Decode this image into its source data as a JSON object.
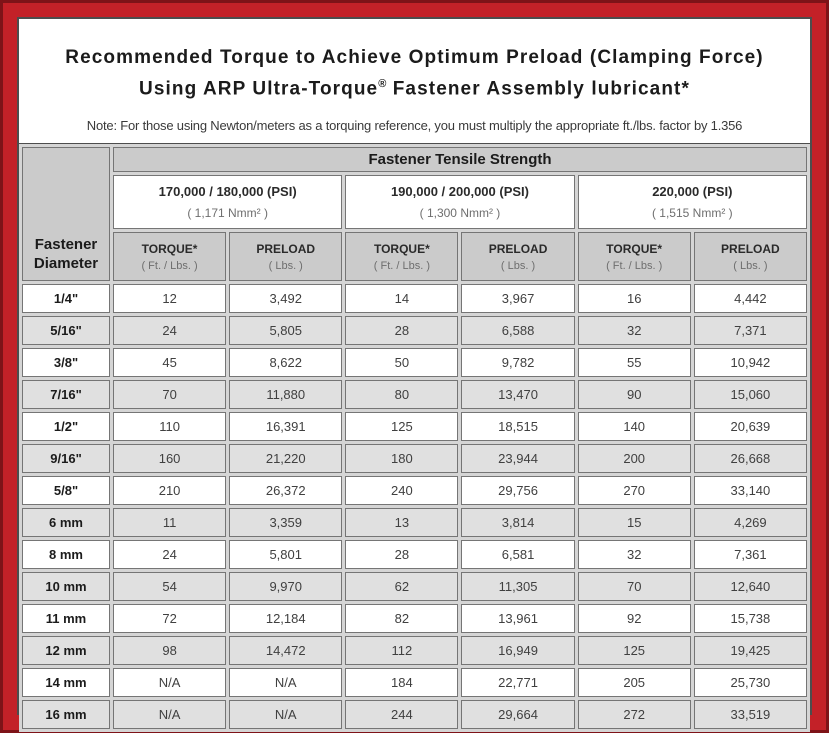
{
  "title": {
    "line1": "Recommended Torque to Achieve Optimum Preload (Clamping Force)",
    "line2_pre": "Using ARP Ultra-Torque",
    "line2_sup": "®",
    "line2_post": " Fastener Assembly lubricant*",
    "note": "Note: For those using Newton/meters as a torquing reference, you must multiply the appropriate ft./lbs. factor by 1.356"
  },
  "table": {
    "corner_header": "Fastener Diameter",
    "tensile_header": "Fastener Tensile Strength",
    "strength_groups": [
      {
        "psi": "170,000 / 180,000 (PSI)",
        "nmm": "( 1,171 Nmm² )"
      },
      {
        "psi": "190,000 / 200,000 (PSI)",
        "nmm": "( 1,300 Nmm² )"
      },
      {
        "psi": "220,000 (PSI)",
        "nmm": "( 1,515 Nmm² )"
      }
    ],
    "col_headers": {
      "torque_label": "TORQUE*",
      "torque_unit": "( Ft. / Lbs. )",
      "preload_label": "PRELOAD",
      "preload_unit": "( Lbs. )"
    },
    "rows": [
      {
        "diameter": "1/4\"",
        "values": [
          "12",
          "3,492",
          "14",
          "3,967",
          "16",
          "4,442"
        ]
      },
      {
        "diameter": "5/16\"",
        "values": [
          "24",
          "5,805",
          "28",
          "6,588",
          "32",
          "7,371"
        ]
      },
      {
        "diameter": "3/8\"",
        "values": [
          "45",
          "8,622",
          "50",
          "9,782",
          "55",
          "10,942"
        ]
      },
      {
        "diameter": "7/16\"",
        "values": [
          "70",
          "11,880",
          "80",
          "13,470",
          "90",
          "15,060"
        ]
      },
      {
        "diameter": "1/2\"",
        "values": [
          "110",
          "16,391",
          "125",
          "18,515",
          "140",
          "20,639"
        ]
      },
      {
        "diameter": "9/16\"",
        "values": [
          "160",
          "21,220",
          "180",
          "23,944",
          "200",
          "26,668"
        ]
      },
      {
        "diameter": "5/8\"",
        "values": [
          "210",
          "26,372",
          "240",
          "29,756",
          "270",
          "33,140"
        ]
      },
      {
        "diameter": "6 mm",
        "values": [
          "11",
          "3,359",
          "13",
          "3,814",
          "15",
          "4,269"
        ]
      },
      {
        "diameter": "8 mm",
        "values": [
          "24",
          "5,801",
          "28",
          "6,581",
          "32",
          "7,361"
        ]
      },
      {
        "diameter": "10 mm",
        "values": [
          "54",
          "9,970",
          "62",
          "11,305",
          "70",
          "12,640"
        ]
      },
      {
        "diameter": "11 mm",
        "values": [
          "72",
          "12,184",
          "82",
          "13,961",
          "92",
          "15,738"
        ]
      },
      {
        "diameter": "12 mm",
        "values": [
          "98",
          "14,472",
          "112",
          "16,949",
          "125",
          "19,425"
        ]
      },
      {
        "diameter": "14 mm",
        "values": [
          "N/A",
          "N/A",
          "184",
          "22,771",
          "205",
          "25,730"
        ]
      },
      {
        "diameter": "16 mm",
        "values": [
          "N/A",
          "N/A",
          "244",
          "29,664",
          "272",
          "33,519"
        ]
      }
    ]
  },
  "colors": {
    "frame_red": "#c32128",
    "frame_dark_red": "#7e1318",
    "panel_border": "#4d4d4d",
    "header_gray": "#cbcbcb",
    "row_alt_gray": "#e0e0e0",
    "cell_border": "#757575"
  }
}
